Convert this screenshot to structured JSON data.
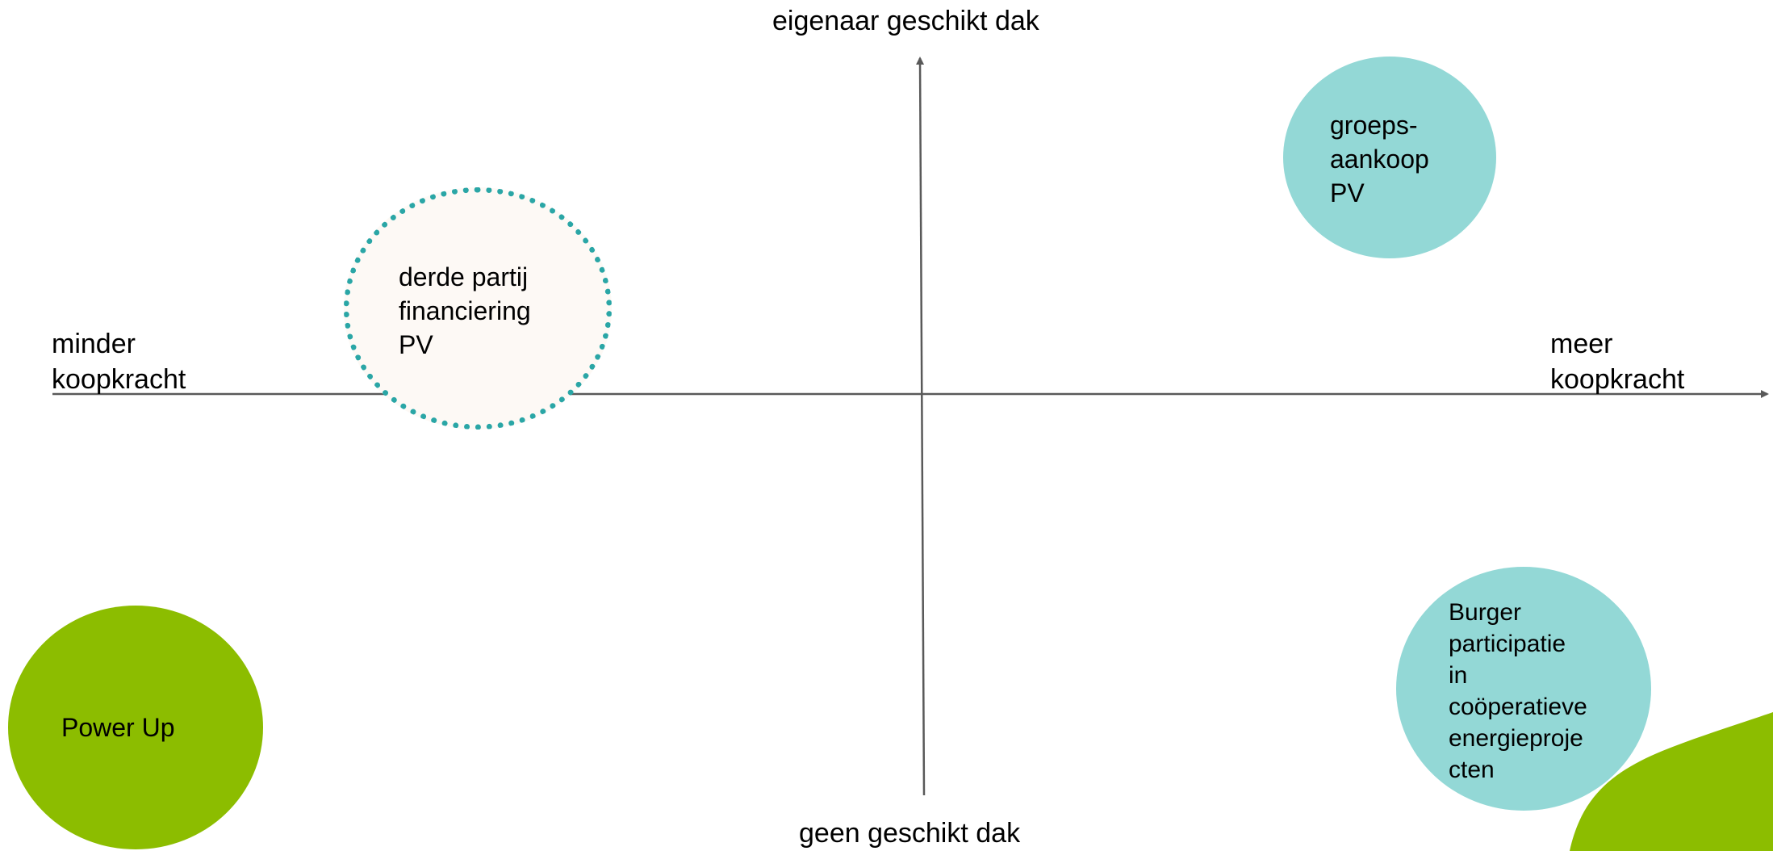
{
  "axes": {
    "top_label": "eigenaar geschikt dak",
    "bottom_label": "geen geschikt dak",
    "left_label": [
      "minder",
      "koopkracht"
    ],
    "right_label": [
      "meer",
      "koopkracht"
    ]
  },
  "circles": {
    "third_party": {
      "lines": [
        "derde partij",
        "financiering",
        "PV"
      ],
      "fill": "#fdf9f5",
      "border": "#2aa6a6"
    },
    "group_purchase": {
      "lines": [
        "groeps-",
        "aankoop",
        "PV"
      ],
      "fill": "#93d8d6"
    },
    "citizen": {
      "lines": [
        "Burger",
        "participatie",
        "in",
        "coöperatieve",
        "energieproje",
        "cten"
      ],
      "fill": "#93d8d6"
    },
    "power_up": {
      "label": "Power Up",
      "fill": "#8cbd00"
    }
  },
  "colors": {
    "axis": "#595959",
    "corner_leaf": "#8cbd00"
  }
}
